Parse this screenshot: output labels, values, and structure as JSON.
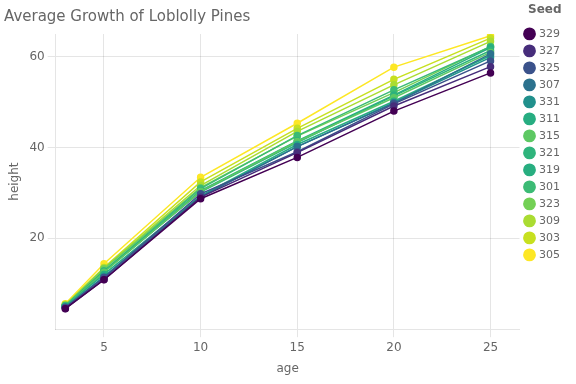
{
  "chart_data": {
    "type": "line",
    "title": "Average Growth of Loblolly Pines",
    "xlabel": "age",
    "ylabel": "height",
    "legend_title": "Seed",
    "x": [
      3,
      5,
      10,
      15,
      20,
      25
    ],
    "series": [
      {
        "name": "329",
        "color": "#440154",
        "values": [
          4.51,
          10.89,
          28.72,
          37.82,
          48.03,
          56.43
        ]
      },
      {
        "name": "327",
        "color": "#472D7B",
        "values": [
          4.55,
          10.92,
          29.07,
          38.87,
          49.15,
          57.81
        ]
      },
      {
        "name": "325",
        "color": "#3B528B",
        "values": [
          4.79,
          11.37,
          29.82,
          39.07,
          49.62,
          59.07
        ]
      },
      {
        "name": "307",
        "color": "#2C728E",
        "values": [
          4.81,
          11.37,
          29.07,
          40.21,
          49.79,
          60.63
        ]
      },
      {
        "name": "331",
        "color": "#21908C",
        "values": [
          4.82,
          11.6,
          29.27,
          40.21,
          49.85,
          59.84
        ]
      },
      {
        "name": "311",
        "color": "#27AD81",
        "values": [
          5.07,
          12.07,
          29.35,
          40.66,
          50.19,
          60.27
        ]
      },
      {
        "name": "315",
        "color": "#5DC863",
        "values": [
          5.09,
          12.55,
          30.35,
          41.33,
          50.97,
          60.94
        ]
      },
      {
        "name": "321",
        "color": "#2FB47C",
        "values": [
          5.11,
          12.6,
          30.21,
          41.1,
          51.37,
          61.37
        ]
      },
      {
        "name": "319",
        "color": "#28AE80",
        "values": [
          5.13,
          12.7,
          30.49,
          41.45,
          51.53,
          61.99
        ]
      },
      {
        "name": "301",
        "color": "#3CBB75",
        "values": [
          5.16,
          12.86,
          30.96,
          42.64,
          52.7,
          62.18
        ]
      },
      {
        "name": "323",
        "color": "#73D055",
        "values": [
          5.25,
          13.29,
          31.16,
          42.5,
          52.09,
          62.29
        ]
      },
      {
        "name": "309",
        "color": "#AADC32",
        "values": [
          5.27,
          13.47,
          31.63,
          43.55,
          53.81,
          63.39
        ]
      },
      {
        "name": "303",
        "color": "#C7E020",
        "values": [
          5.44,
          13.58,
          32.43,
          44.23,
          55.01,
          64.1
        ]
      },
      {
        "name": "305",
        "color": "#FDE725",
        "values": [
          5.62,
          14.42,
          33.46,
          45.35,
          57.7,
          64.62
        ]
      }
    ],
    "marker": "circle",
    "xlim": [
      2.5,
      26.5
    ],
    "xticks": [
      5,
      10,
      15,
      20,
      25
    ],
    "ylim": [
      0,
      65
    ],
    "yticks": [
      20,
      40,
      60
    ],
    "grid": true,
    "legend": "right"
  }
}
